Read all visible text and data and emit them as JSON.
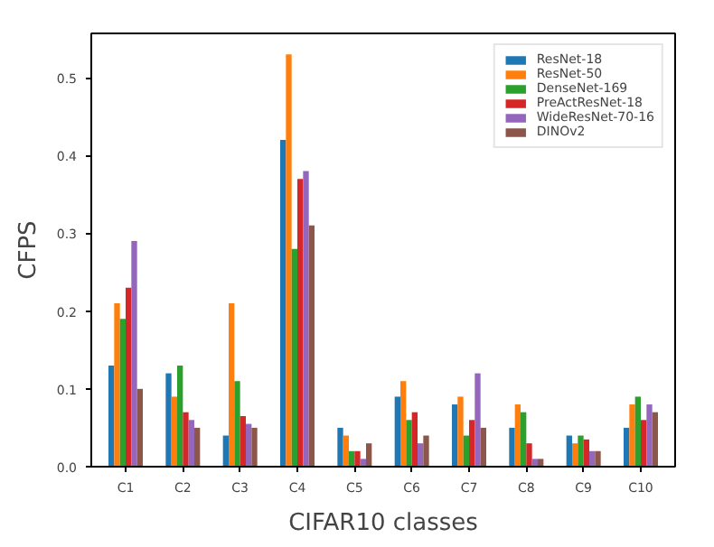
{
  "chart_data": {
    "type": "bar",
    "xlabel": "CIFAR10 classes",
    "ylabel": "CFPS",
    "categories": [
      "C1",
      "C2",
      "C3",
      "C4",
      "C5",
      "C6",
      "C7",
      "C8",
      "C9",
      "C10"
    ],
    "series": [
      {
        "name": "ResNet-18",
        "color": "#1f77b4",
        "values": [
          0.13,
          0.12,
          0.04,
          0.42,
          0.05,
          0.09,
          0.08,
          0.05,
          0.04,
          0.05
        ]
      },
      {
        "name": "ResNet-50",
        "color": "#ff7f0e",
        "values": [
          0.21,
          0.09,
          0.21,
          0.53,
          0.04,
          0.11,
          0.09,
          0.08,
          0.03,
          0.08
        ]
      },
      {
        "name": "DenseNet-169",
        "color": "#2ca02c",
        "values": [
          0.19,
          0.13,
          0.11,
          0.28,
          0.02,
          0.06,
          0.04,
          0.07,
          0.04,
          0.09
        ]
      },
      {
        "name": "PreActResNet-18",
        "color": "#d62728",
        "values": [
          0.23,
          0.07,
          0.065,
          0.37,
          0.02,
          0.07,
          0.06,
          0.03,
          0.035,
          0.06
        ]
      },
      {
        "name": "WideResNet-70-16",
        "color": "#9467bd",
        "values": [
          0.29,
          0.06,
          0.055,
          0.38,
          0.01,
          0.03,
          0.12,
          0.01,
          0.02,
          0.08
        ]
      },
      {
        "name": "DINOv2",
        "color": "#8c564b",
        "values": [
          0.1,
          0.05,
          0.05,
          0.31,
          0.03,
          0.04,
          0.05,
          0.01,
          0.02,
          0.07
        ]
      }
    ],
    "ylim": [
      0,
      0.557
    ],
    "yticks": [
      {
        "value": 0,
        "label": "0.0"
      },
      {
        "value": 0.1,
        "label": "0.1"
      },
      {
        "value": 0.2,
        "label": "0.2"
      },
      {
        "value": 0.3,
        "label": "0.3"
      },
      {
        "value": 0.4,
        "label": "0.4"
      },
      {
        "value": 0.5,
        "label": "0.5"
      }
    ],
    "legend": "top right",
    "grid": false
  }
}
